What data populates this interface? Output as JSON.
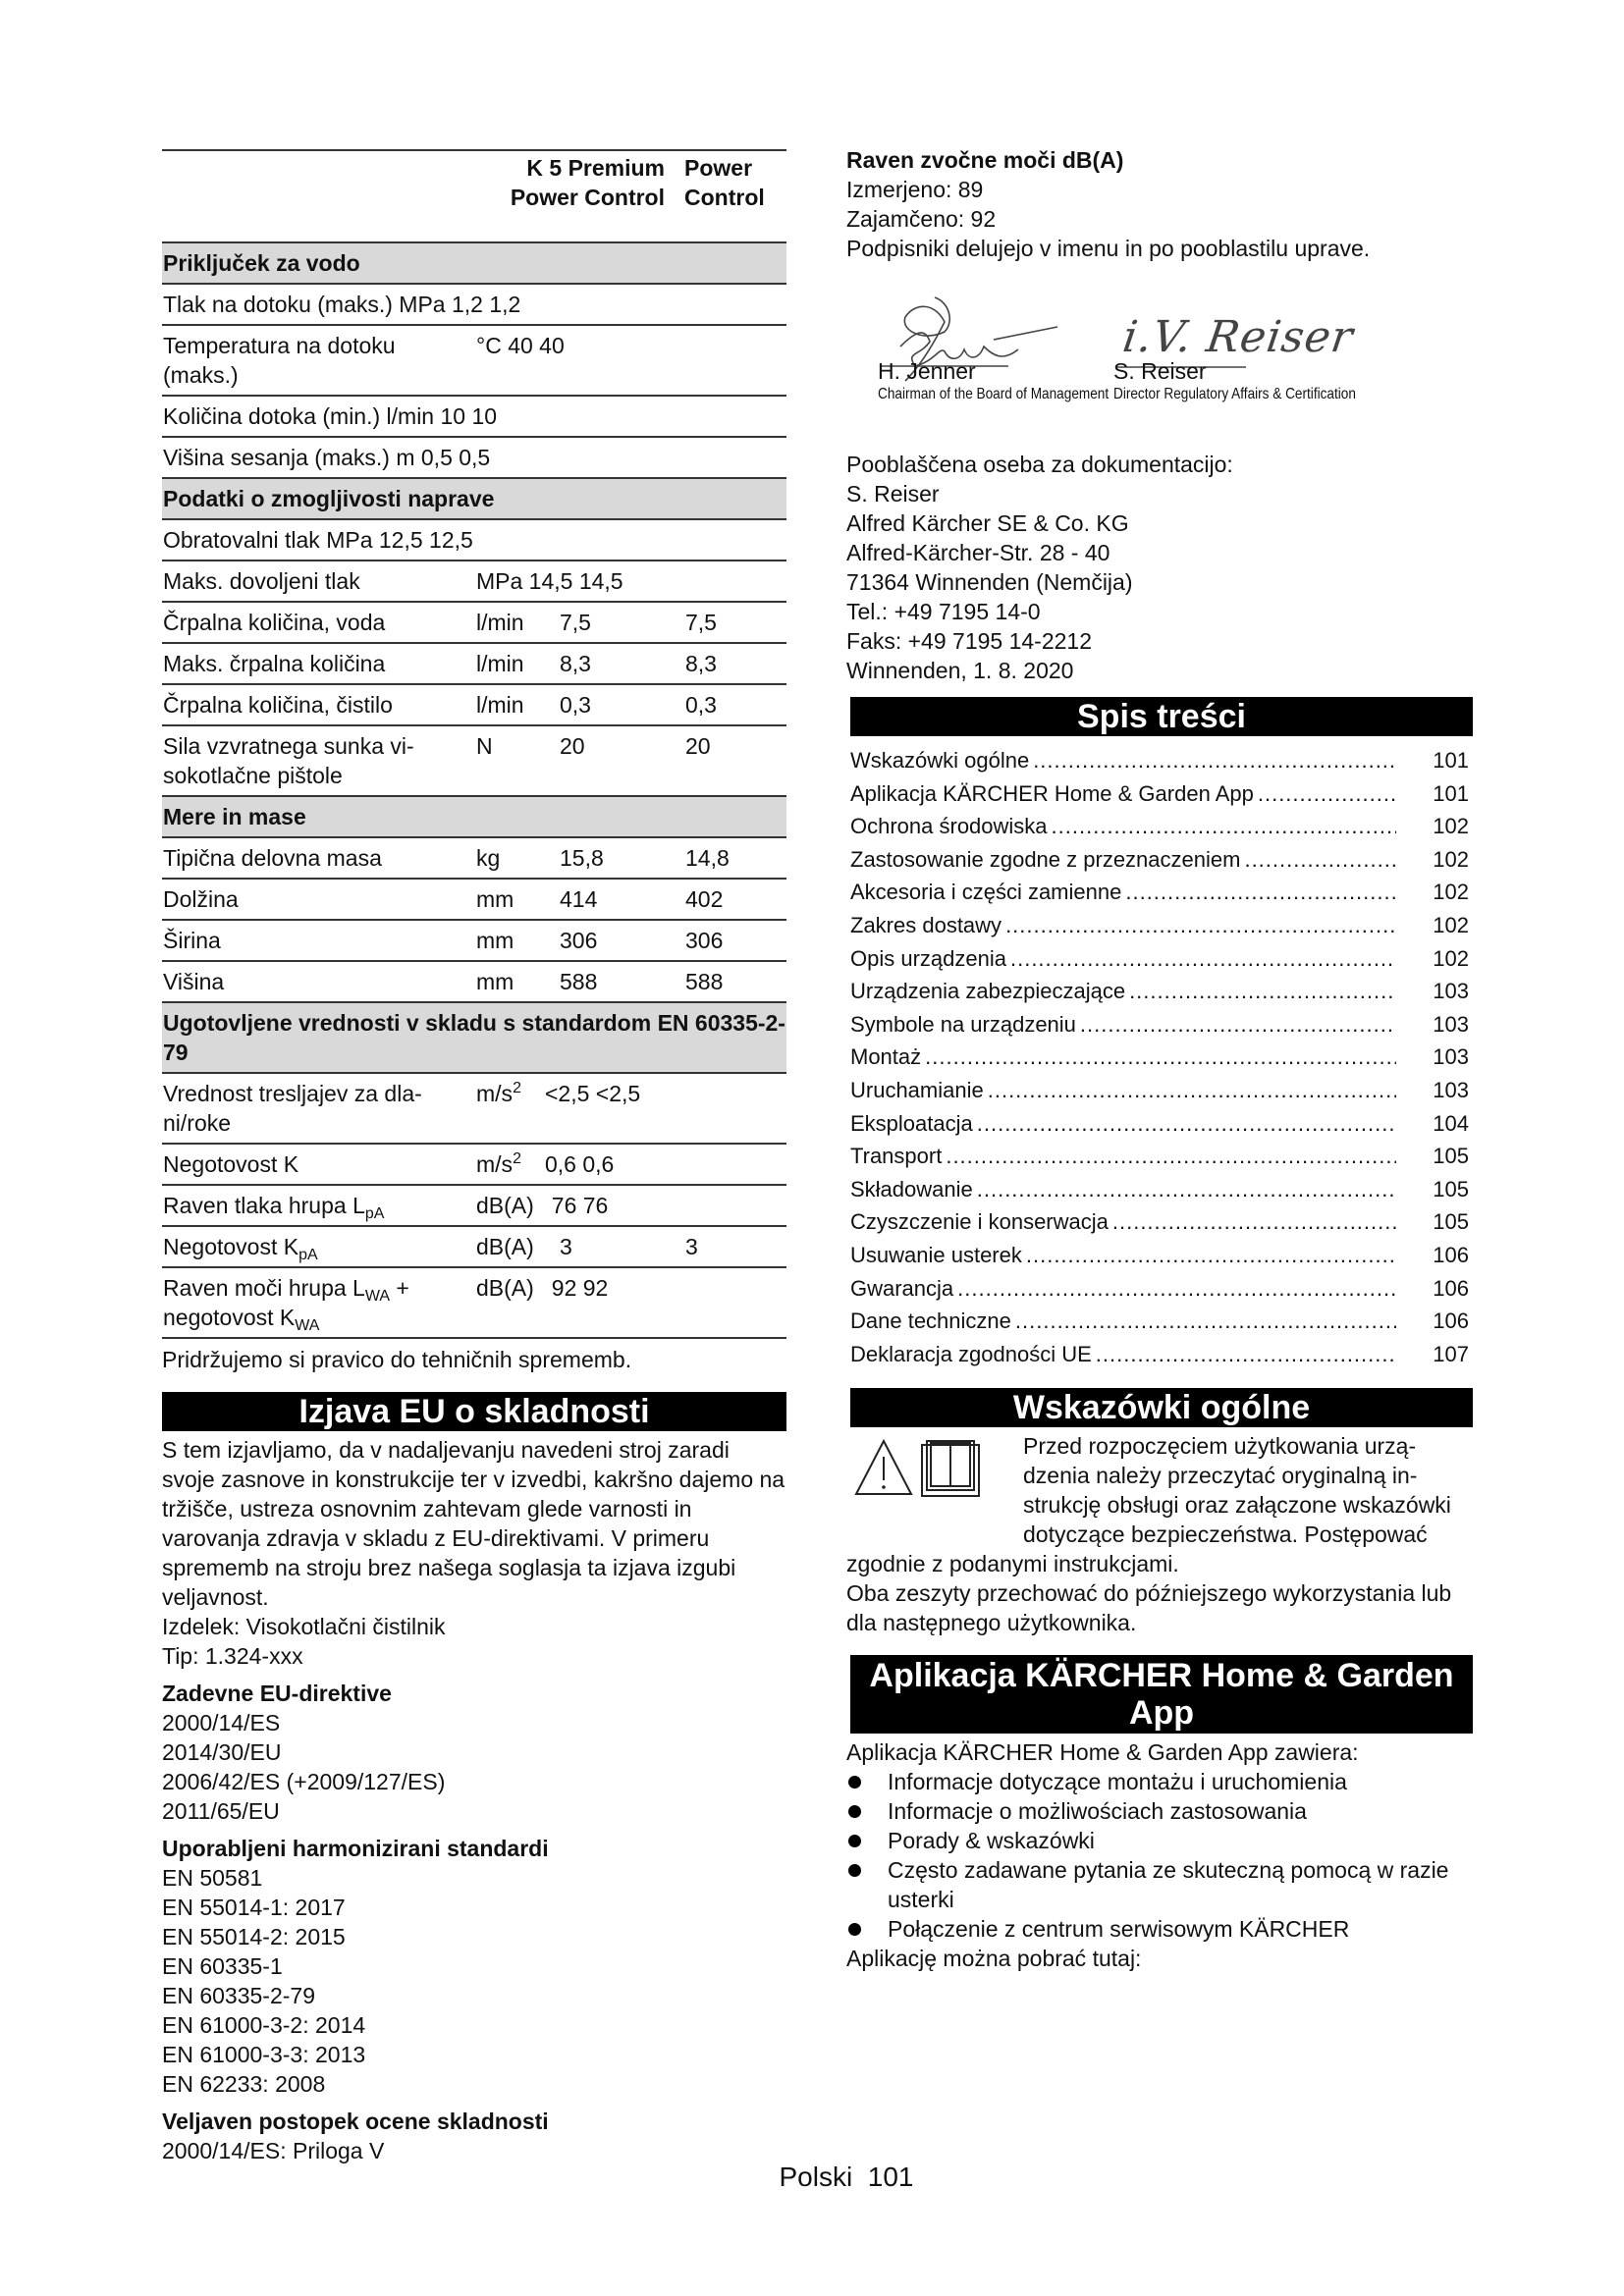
{
  "spec_table": {
    "header": {
      "col1": "K 5 Premium Power Control",
      "col2": "Power Control"
    },
    "rows": [
      {
        "type": "section",
        "label": "Priključek za vodo"
      },
      {
        "type": "inline",
        "text": "Tlak na dotoku (maks.) MPa 1,2 1,2"
      },
      {
        "type": "unitinline",
        "label": "Temperatura na dotoku (maks.)",
        "unit": "°C 40 40"
      },
      {
        "type": "inline",
        "text": "Količina dotoka (min.) l/min 10 10"
      },
      {
        "type": "inline",
        "text": "Višina sesanja (maks.) m 0,5 0,5"
      },
      {
        "type": "section",
        "label": "Podatki o zmogljivosti naprave"
      },
      {
        "type": "inline",
        "text": "Obratovalni tlak MPa 12,5 12,5"
      },
      {
        "type": "unitinline",
        "label": "Maks. dovoljeni tlak",
        "unit": "MPa 14,5 14,5"
      },
      {
        "type": "row",
        "label": "Črpalna količina, voda",
        "unit": "l/min",
        "v1": "7,5",
        "v2": "7,5"
      },
      {
        "type": "row",
        "label": "Maks. črpalna količina",
        "unit": "l/min",
        "v1": "8,3",
        "v2": "8,3"
      },
      {
        "type": "row",
        "label": "Črpalna količina, čistilo",
        "unit": "l/min",
        "v1": "0,3",
        "v2": "0,3"
      },
      {
        "type": "row",
        "label": "Sila vzvratnega sunka vi­sokotlačne pištole",
        "unit": "N",
        "v1": "20",
        "v2": "20"
      },
      {
        "type": "section",
        "label": "Mere in mase"
      },
      {
        "type": "row",
        "label": "Tipična delovna masa",
        "unit": "kg",
        "v1": "15,8",
        "v2": "14,8"
      },
      {
        "type": "row",
        "label": "Dolžina",
        "unit": "mm",
        "v1": "414",
        "v2": "402"
      },
      {
        "type": "row",
        "label": "Širina",
        "unit": "mm",
        "v1": "306",
        "v2": "306"
      },
      {
        "type": "row",
        "label": "Višina",
        "unit": "mm",
        "v1": "588",
        "v2": "588"
      },
      {
        "type": "section",
        "label": "Ugotovljene vrednosti v skladu s standardom EN 60335-2-79"
      },
      {
        "type": "unitinline",
        "label": "Vrednost tresljajev za dla-ni/roke",
        "unit": "m/s",
        "unit_sup": "2",
        "rest": "<2,5 <2,5"
      },
      {
        "type": "unitinline",
        "label": "Negotovost K",
        "unit": "m/s",
        "unit_sup": "2",
        "rest": "0,6 0,6"
      },
      {
        "type": "unitinline",
        "label": "Raven tlaka hrupa L",
        "label_sub": "pA",
        "unit": "dB(A)",
        "rest": "76 76"
      },
      {
        "type": "row",
        "label": "Negotovost K",
        "label_sub": "pA",
        "unit": "dB(A)",
        "v1": "3",
        "v2": "3"
      },
      {
        "type": "unitinline",
        "label": "Raven moči hrupa L",
        "label_sub": "WA",
        "label_tail": " + negotovost K",
        "label_sub2": "WA",
        "unit": "dB(A)",
        "rest": "92 92"
      }
    ],
    "note": "Pridržujemo si pravico do tehničnih sprememb."
  },
  "eu_declaration": {
    "title": "Izjava EU o skladnosti",
    "intro": "S tem izjavljamo, da v nadaljevanju navedeni stroj zara­di svoje zasnove in konstrukcije ter v izvedbi, kakršno dajemo na tržišče, ustreza osnovnim zahtevam glede varnosti in varovanja zdravja v skladu z EU-direktivami. V primeru sprememb na stroju brez našega soglasja ta izjava izgubi veljavnost.",
    "product": "Izdelek: Visokotlačni čistilnik",
    "type": "Tip: 1.324-xxx",
    "directives_title": "Zadevne EU-direktive",
    "directives": [
      "2000/14/ES",
      "2014/30/EU",
      "2006/42/ES (+2009/127/ES)",
      "2011/65/EU"
    ],
    "standards_title": "Uporabljeni harmonizirani standardi",
    "standards": [
      "EN 50581",
      "EN 55014-1: 2017",
      "EN 55014-2: 2015",
      "EN 60335-1",
      "EN 60335-2-79",
      "EN 61000-3-2: 2014",
      "EN 61000-3-3: 2013",
      "EN 62233: 2008"
    ],
    "procedure_title": "Veljaven postopek ocene skladnosti",
    "procedure": "2000/14/ES: Priloga V"
  },
  "sound": {
    "title": "Raven zvočne moči dB(A)",
    "measured": "Izmerjeno: 89",
    "guaranteed": "Zajamčeno: 92",
    "signers_note": "Podpisniki delujejo v imenu in po pooblastilu uprave."
  },
  "signatures": [
    {
      "name": "H. Jenner",
      "role": "Chairman of the Board of Management"
    },
    {
      "name": "S. Reiser",
      "role": "Director Regulatory Affairs & Certification",
      "handwriting": "i.V. Reiser"
    }
  ],
  "documentation": {
    "lines": [
      "Pooblaščena oseba za dokumentacijo:",
      "S. Reiser",
      "Alfred Kärcher SE & Co. KG",
      "Alfred-Kärcher-Str. 28 - 40",
      "71364 Winnenden (Nemčija)",
      "Tel.: +49 7195 14-0",
      "Faks: +49 7195 14-2212",
      "Winnenden, 1. 8. 2020"
    ]
  },
  "toc": {
    "title": "Spis treści",
    "items": [
      {
        "label": "Wskazówki ogólne",
        "page": "101"
      },
      {
        "label": "Aplikacja KÄRCHER Home & Garden App",
        "page": "101"
      },
      {
        "label": "Ochrona środowiska",
        "page": "102"
      },
      {
        "label": "Zastosowanie zgodne z przeznaczeniem",
        "page": "102"
      },
      {
        "label": "Akcesoria i części zamienne",
        "page": "102"
      },
      {
        "label": "Zakres dostawy",
        "page": "102"
      },
      {
        "label": "Opis urządzenia",
        "page": "102"
      },
      {
        "label": "Urządzenia zabezpieczające",
        "page": "103"
      },
      {
        "label": "Symbole na urządzeniu",
        "page": "103"
      },
      {
        "label": "Montaż",
        "page": "103"
      },
      {
        "label": "Uruchamianie",
        "page": "103"
      },
      {
        "label": "Eksploatacja",
        "page": "104"
      },
      {
        "label": "Transport",
        "page": "105"
      },
      {
        "label": "Składowanie",
        "page": "105"
      },
      {
        "label": "Czyszczenie i konserwacja",
        "page": "105"
      },
      {
        "label": "Usuwanie usterek",
        "page": "106"
      },
      {
        "label": "Gwarancja",
        "page": "106"
      },
      {
        "label": "Dane techniczne",
        "page": "106"
      },
      {
        "label": "Deklaracja zgodności UE",
        "page": "107"
      }
    ]
  },
  "general": {
    "title": "Wskazówki ogólne",
    "icons": [
      "warning-triangle-icon",
      "manual-book-icon"
    ],
    "text1": "Przed rozpoczęciem użytkowania urzą­dzenia należy przeczytać oryginalną in­strukcję obsługi oraz załączone wskazówki dotyczące bezpieczeństwa. Postępować zgodnie z podanymi instrukcjami.",
    "text2": "Oba zeszyty przechować do późniejszego wykorzysta­nia lub dla następnego użytkownika."
  },
  "app": {
    "title": "Aplikacja KÄRCHER Home & Garden App",
    "intro": "Aplikacja KÄRCHER Home & Garden App zawiera:",
    "bullets": [
      "Informacje dotyczące montażu i uruchomienia",
      "Informacje o możliwościach zastosowania",
      "Porady & wskazówki",
      "Często zadawane pytania ze skuteczną pomocą w razie usterki",
      "Połączenie z centrum serwisowym KÄRCHER"
    ],
    "download": "Aplikację można pobrać tutaj:"
  },
  "footer": {
    "language": "Polski",
    "page": "101"
  }
}
